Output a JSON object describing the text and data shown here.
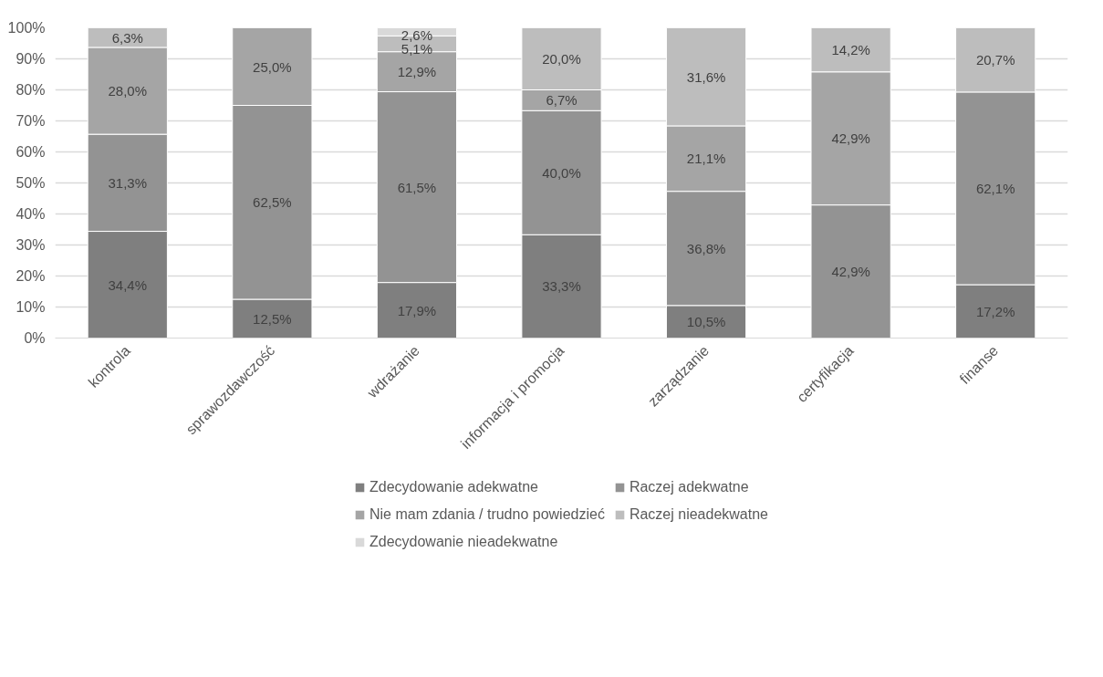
{
  "chart_data": {
    "type": "bar",
    "stacked": true,
    "categories": [
      "kontrola",
      "sprawozdawczość",
      "wdrażanie",
      "informacja i promocja",
      "zarządzanie",
      "certyfikacja",
      "finanse"
    ],
    "series": [
      {
        "name": "Zdecydowanie adekwatne",
        "color": "#7f7f7f",
        "values": [
          34.4,
          12.5,
          17.9,
          33.3,
          10.5,
          null,
          17.2
        ]
      },
      {
        "name": "Raczej adekwatne",
        "color": "#939393",
        "values": [
          31.3,
          62.5,
          61.5,
          40.0,
          36.8,
          42.9,
          62.1
        ]
      },
      {
        "name": "Nie mam zdania / trudno powiedzieć",
        "color": "#a5a5a5",
        "values": [
          28.0,
          25.0,
          12.9,
          6.7,
          21.1,
          42.9,
          null
        ]
      },
      {
        "name": "Raczej nieadekwatne",
        "color": "#bdbdbd",
        "values": [
          6.3,
          null,
          5.1,
          20.0,
          31.6,
          14.2,
          20.7
        ]
      },
      {
        "name": "Zdecydowanie nieadekwatne",
        "color": "#d9d9d9",
        "values": [
          null,
          null,
          2.6,
          null,
          null,
          null,
          null
        ]
      }
    ],
    "ylim": [
      0,
      100
    ],
    "yticks": [
      {
        "value": 0,
        "label": "0%"
      },
      {
        "value": 10,
        "label": "10%"
      },
      {
        "value": 20,
        "label": "20%"
      },
      {
        "value": 30,
        "label": "30%"
      },
      {
        "value": 40,
        "label": "40%"
      },
      {
        "value": 50,
        "label": "50%"
      },
      {
        "value": 60,
        "label": "60%"
      },
      {
        "value": 70,
        "label": "70%"
      },
      {
        "value": 80,
        "label": "80%"
      },
      {
        "value": 90,
        "label": "90%"
      },
      {
        "value": 100,
        "label": "100%"
      }
    ],
    "value_labels": [
      [
        "34,4%",
        "12,5%",
        "17,9%",
        "33,3%",
        "10,5%",
        null,
        "17,2%"
      ],
      [
        "31,3%",
        "62,5%",
        "61,5%",
        "40,0%",
        "36,8%",
        "42,9%",
        "62,1%"
      ],
      [
        "28,0%",
        "25,0%",
        "12,9%",
        "6,7%",
        "21,1%",
        "42,9%",
        null
      ],
      [
        "6,3%",
        null,
        "5,1%",
        "20,0%",
        "31,6%",
        "14,2%",
        "20,7%"
      ],
      [
        null,
        null,
        "2,6%",
        null,
        null,
        null,
        null
      ]
    ],
    "grid": "y",
    "legend": "bottom"
  }
}
